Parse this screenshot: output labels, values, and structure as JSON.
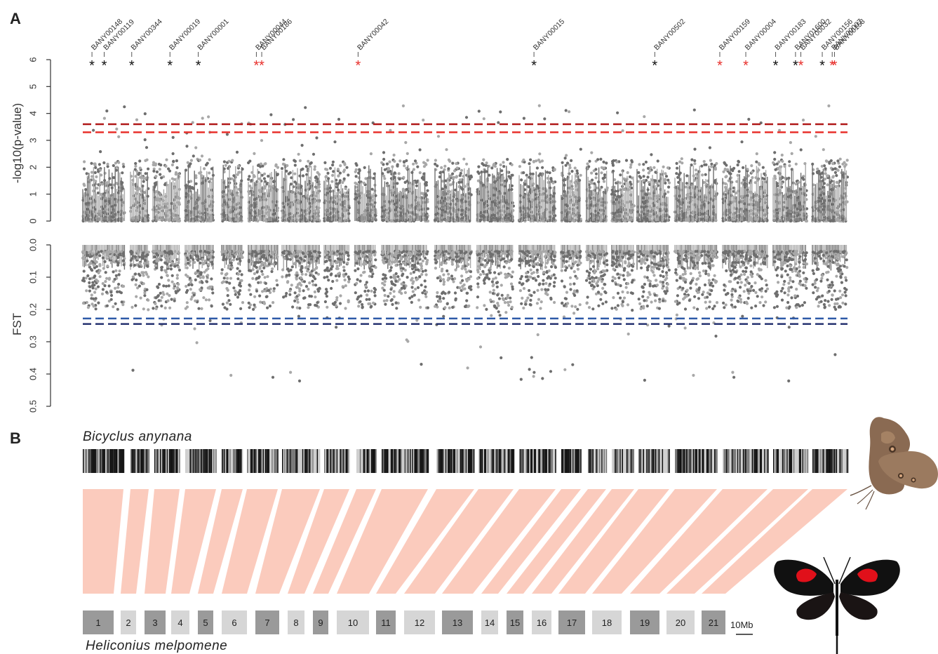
{
  "panels": {
    "a": "A",
    "b": "B"
  },
  "colors": {
    "dark_point": "#6e6e6e",
    "light_point": "#a8a8a8",
    "thr_red_dark": "#b01818",
    "thr_red": "#e8302c",
    "thr_blue_light": "#2e5aa8",
    "thr_blue_dark": "#1c2a6a",
    "star_black": "#111111",
    "star_red": "#e8302c",
    "synteny": "#fbcbbd",
    "chrom_dark": "#9a9a9a",
    "chrom_light": "#d6d6d6"
  },
  "chart_data": [
    {
      "type": "scatter",
      "name": "gwas",
      "ylabel": "-log10(p-value)",
      "ylim": [
        0,
        6
      ],
      "yticks": [
        0,
        1,
        2,
        3,
        4,
        5,
        6
      ],
      "thresholds": [
        3.6,
        3.3
      ],
      "annotated_loci": [
        {
          "label": "BANY00148",
          "x": 0.012,
          "star": "black"
        },
        {
          "label": "BANY00119",
          "x": 0.028,
          "star": "black"
        },
        {
          "label": "BANY00344",
          "x": 0.064,
          "star": "black"
        },
        {
          "label": "BANY00019",
          "x": 0.114,
          "star": "black"
        },
        {
          "label": "BANY00001",
          "x": 0.151,
          "star": "black"
        },
        {
          "label": "BANY00044",
          "x": 0.227,
          "star": "red"
        },
        {
          "label": "BANY00186",
          "x": 0.234,
          "star": "red"
        },
        {
          "label": "BANY00042",
          "x": 0.36,
          "star": "red"
        },
        {
          "label": "BANY00015",
          "x": 0.59,
          "star": "black"
        },
        {
          "label": "BANY00502",
          "x": 0.748,
          "star": "black"
        },
        {
          "label": "BANY00159",
          "x": 0.833,
          "star": "red"
        },
        {
          "label": "BANY00004",
          "x": 0.867,
          "star": "red"
        },
        {
          "label": "BANY00183",
          "x": 0.906,
          "star": "black"
        },
        {
          "label": "BANY01600",
          "x": 0.932,
          "star": "black"
        },
        {
          "label": "BANY00032",
          "x": 0.939,
          "star": "red"
        },
        {
          "label": "BANY00156",
          "x": 0.967,
          "star": "black"
        },
        {
          "label": "BANY00007",
          "x": 0.98,
          "star": "red"
        },
        {
          "label": "BANY00158",
          "x": 0.983,
          "star": "red"
        }
      ]
    },
    {
      "type": "scatter",
      "name": "fst",
      "ylabel": "FST",
      "ylim": [
        0,
        0.5
      ],
      "yticks": [
        "0.0",
        "0.1",
        "0.2",
        "0.3",
        "0.4",
        "0.5"
      ],
      "thresholds": [
        0.228,
        0.245
      ]
    },
    {
      "type": "table",
      "name": "synteny",
      "top_species": "Bicyclus anynana",
      "bottom_species": "Heliconius melpomene",
      "chromosomes": [
        "1",
        "2",
        "3",
        "4",
        "5",
        "6",
        "7",
        "8",
        "9",
        "10",
        "11",
        "12",
        "13",
        "14",
        "15",
        "16",
        "17",
        "18",
        "19",
        "20",
        "21"
      ],
      "chromosome_shade": [
        "dark",
        "light",
        "dark",
        "light",
        "dark",
        "light",
        "dark",
        "light",
        "dark",
        "light",
        "dark",
        "light",
        "dark",
        "light",
        "dark",
        "light",
        "dark",
        "light",
        "dark",
        "light",
        "dark"
      ],
      "scale_bar": "10Mb"
    }
  ]
}
